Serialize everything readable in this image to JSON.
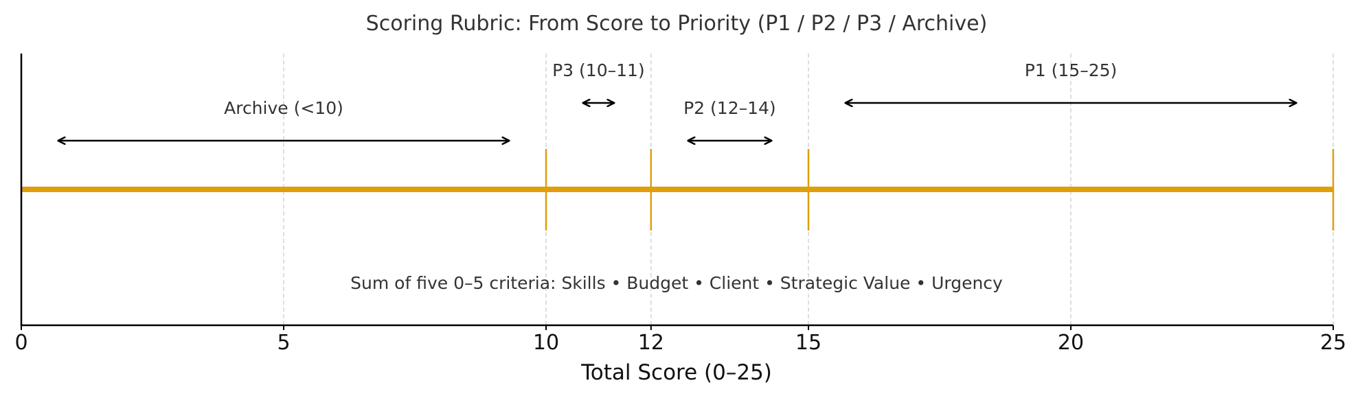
{
  "chart_data": {
    "type": "scoring-rubric-scale",
    "title": "Scoring Rubric: From Score to Priority (P1 / P2 / P3 / Archive)",
    "xlabel": "Total Score (0–25)",
    "xlim": [
      0,
      25
    ],
    "x_ticks": [
      0,
      5,
      10,
      12,
      15,
      20,
      25
    ],
    "grid": "vertical dashed at ticks",
    "threshold_markers": [
      10,
      12,
      15,
      25
    ],
    "bands": [
      {
        "label": "Archive (<10)",
        "from": 0,
        "to": 10,
        "row": "lower"
      },
      {
        "label": "P3 (10–11)",
        "from": 10,
        "to": 12,
        "row": "upper"
      },
      {
        "label": "P2 (12–14)",
        "from": 12,
        "to": 15,
        "row": "lower"
      },
      {
        "label": "P1 (15–25)",
        "from": 15,
        "to": 25,
        "row": "upper"
      }
    ],
    "annotation": "Sum of five 0–5 criteria: Skills • Budget • Client • Strategic Value • Urgency",
    "colors": {
      "scale_line": "#E09E0B",
      "arrows": "#000000",
      "grid": "#cccccc",
      "text": "#333333"
    }
  }
}
